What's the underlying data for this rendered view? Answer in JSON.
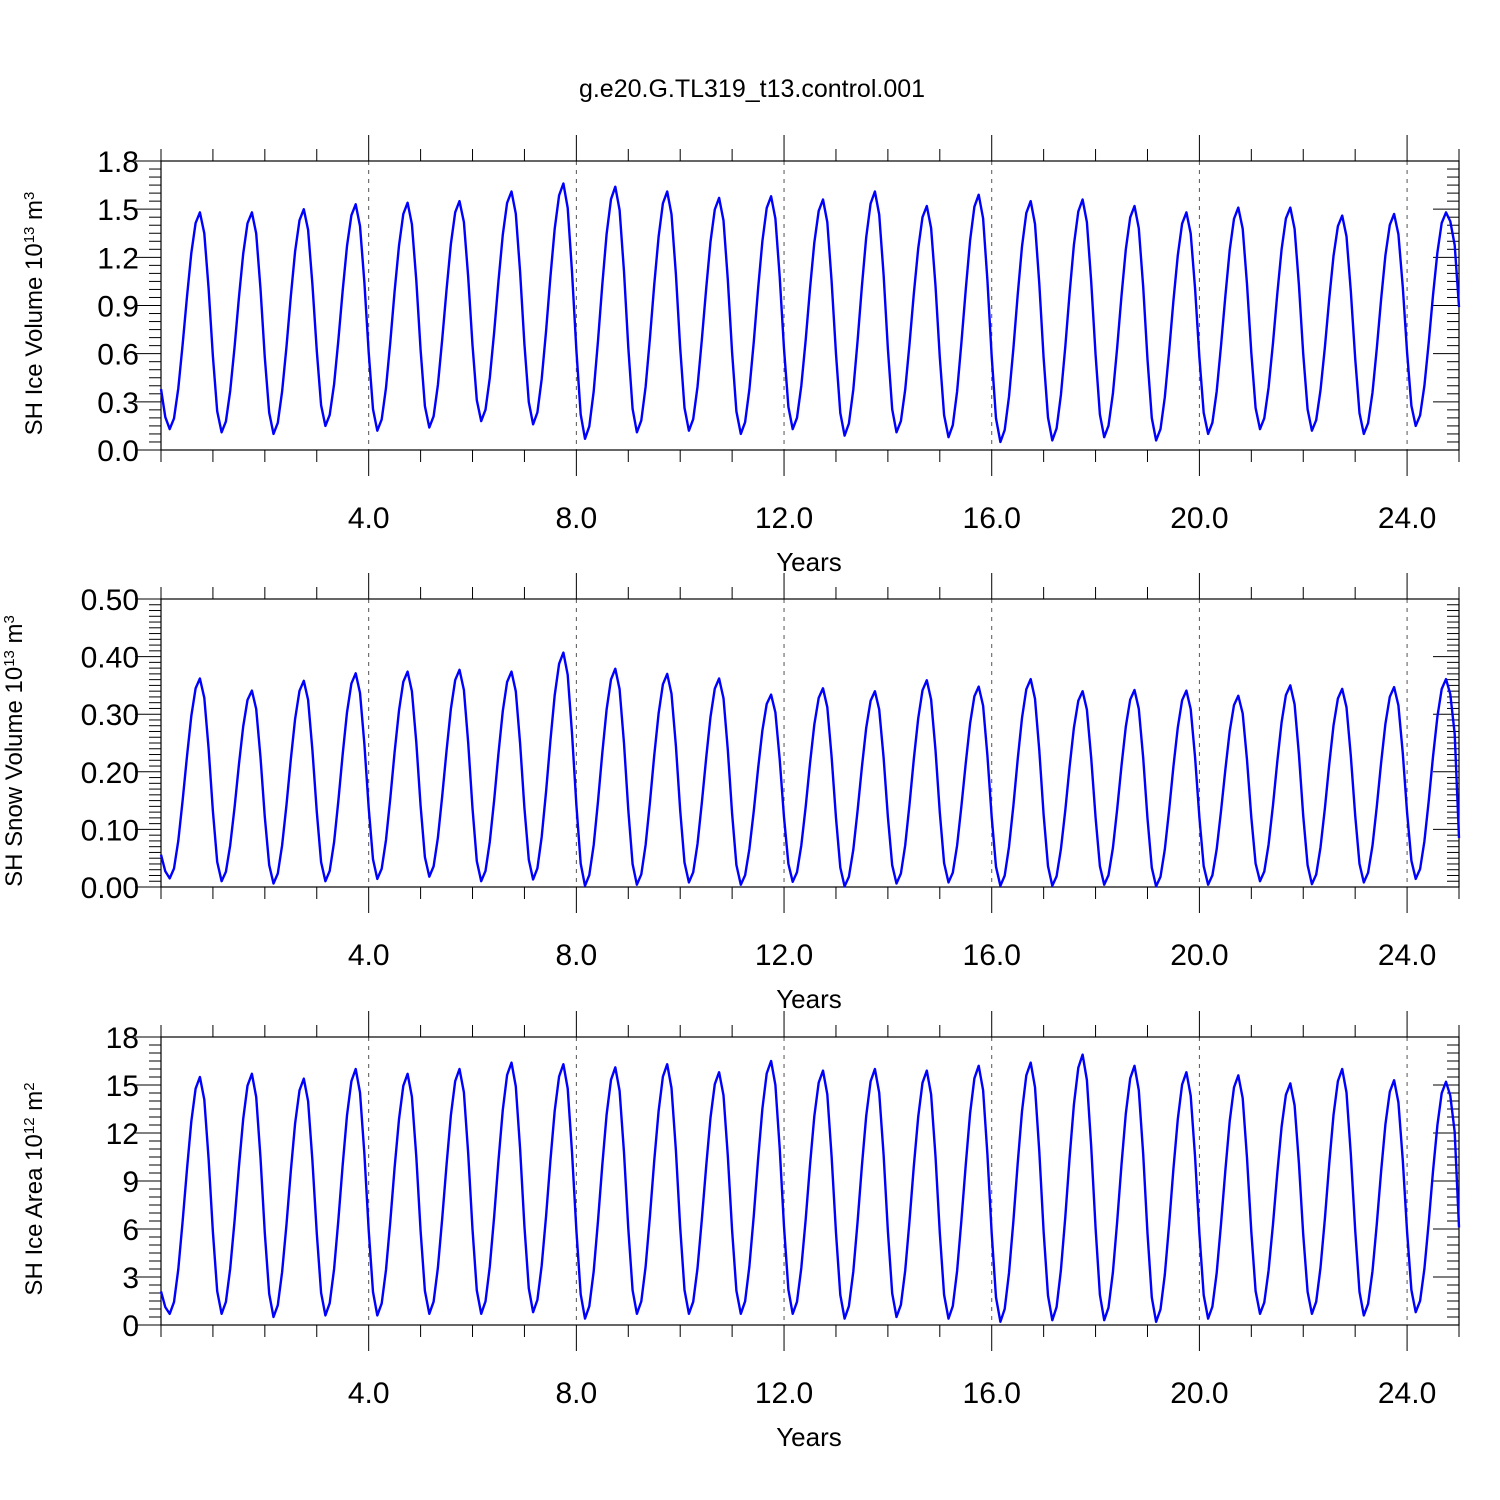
{
  "title": "g.e20.G.TL319_t13.control.001",
  "colors": {
    "series": "#0000ff",
    "axis": "#000000",
    "grid": "#555555"
  },
  "chart_data": [
    {
      "type": "line",
      "xlabel": "Years",
      "ylabel": {
        "prefix": "SH Ice Volume 10",
        "exponent": "13",
        "unit": " m",
        "unit_exponent": "3"
      },
      "xlim": [
        0,
        25
      ],
      "ylim": [
        0,
        1.8
      ],
      "x_ticks": [
        4,
        8,
        12,
        16,
        20,
        24
      ],
      "x_tick_labels": [
        "4.0",
        "8.0",
        "12.0",
        "16.0",
        "20.0",
        "24.0"
      ],
      "y_ticks": [
        0,
        0.3,
        0.6,
        0.9,
        1.2,
        1.5,
        1.8
      ],
      "y_tick_labels": [
        "0.0",
        "0.3",
        "0.6",
        "0.9",
        "1.2",
        "1.5",
        "1.8"
      ],
      "grid": "vertical dashed at labeled years",
      "seasonal_cycle": {
        "months_per_year": 12,
        "peak_month": 9,
        "trough_month": 2
      },
      "yearly_max": [
        1.48,
        1.48,
        1.5,
        1.53,
        1.54,
        1.55,
        1.61,
        1.66,
        1.64,
        1.61,
        1.57,
        1.58,
        1.56,
        1.61,
        1.52,
        1.59,
        1.55,
        1.56,
        1.52,
        1.48,
        1.51,
        1.51,
        1.46,
        1.47,
        1.48
      ],
      "yearly_min": [
        0.13,
        0.11,
        0.1,
        0.15,
        0.12,
        0.14,
        0.18,
        0.16,
        0.07,
        0.11,
        0.12,
        0.1,
        0.13,
        0.09,
        0.11,
        0.08,
        0.05,
        0.06,
        0.08,
        0.06,
        0.1,
        0.13,
        0.12,
        0.1,
        0.15
      ],
      "start_value": 0.38,
      "end_value": 0.89,
      "series": [
        {
          "values": "generated monthly from yearly_max / yearly_min"
        }
      ]
    },
    {
      "type": "line",
      "xlabel": "Years",
      "ylabel": {
        "prefix": "SH Snow Volume 10",
        "exponent": "13",
        "unit": " m",
        "unit_exponent": "3"
      },
      "xlim": [
        0,
        25
      ],
      "ylim": [
        0,
        0.5
      ],
      "x_ticks": [
        4,
        8,
        12,
        16,
        20,
        24
      ],
      "x_tick_labels": [
        "4.0",
        "8.0",
        "12.0",
        "16.0",
        "20.0",
        "24.0"
      ],
      "y_ticks": [
        0,
        0.1,
        0.2,
        0.3,
        0.4,
        0.5
      ],
      "y_tick_labels": [
        "0.00",
        "0.10",
        "0.20",
        "0.30",
        "0.40",
        "0.50"
      ],
      "grid": "vertical dashed at labeled years",
      "seasonal_cycle": {
        "months_per_year": 12,
        "peak_month": 9,
        "trough_month": 2
      },
      "yearly_max": [
        0.362,
        0.341,
        0.358,
        0.371,
        0.374,
        0.377,
        0.374,
        0.407,
        0.379,
        0.37,
        0.362,
        0.334,
        0.345,
        0.34,
        0.359,
        0.348,
        0.361,
        0.34,
        0.342,
        0.341,
        0.332,
        0.35,
        0.344,
        0.347,
        0.361
      ],
      "yearly_min": [
        0.015,
        0.01,
        0.006,
        0.01,
        0.014,
        0.018,
        0.01,
        0.013,
        0.002,
        0.004,
        0.008,
        0.004,
        0.009,
        0.001,
        0.006,
        0.008,
        0.002,
        0.002,
        0.004,
        0.001,
        0.004,
        0.01,
        0.005,
        0.008,
        0.014
      ],
      "start_value": 0.056,
      "end_value": 0.085,
      "series": [
        {
          "values": "generated monthly from yearly_max / yearly_min"
        }
      ]
    },
    {
      "type": "line",
      "xlabel": "Years",
      "ylabel": {
        "prefix": "SH Ice Area 10",
        "exponent": "12",
        "unit": " m",
        "unit_exponent": "2"
      },
      "xlim": [
        0,
        25
      ],
      "ylim": [
        0,
        18
      ],
      "x_ticks": [
        4,
        8,
        12,
        16,
        20,
        24
      ],
      "x_tick_labels": [
        "4.0",
        "8.0",
        "12.0",
        "16.0",
        "20.0",
        "24.0"
      ],
      "y_ticks": [
        0,
        3,
        6,
        9,
        12,
        15,
        18
      ],
      "y_tick_labels": [
        "0",
        "3",
        "6",
        "9",
        "12",
        "15",
        "18"
      ],
      "grid": "vertical dashed at labeled years",
      "seasonal_cycle": {
        "months_per_year": 12,
        "peak_month": 9,
        "trough_month": 2
      },
      "yearly_max": [
        15.5,
        15.7,
        15.4,
        16.0,
        15.7,
        16.0,
        16.4,
        16.3,
        16.1,
        16.3,
        15.8,
        16.5,
        15.9,
        16.0,
        15.9,
        16.2,
        16.4,
        16.9,
        16.2,
        15.8,
        15.6,
        15.1,
        16.0,
        15.3,
        15.2
      ],
      "yearly_min": [
        0.7,
        0.7,
        0.5,
        0.6,
        0.6,
        0.7,
        0.7,
        0.8,
        0.4,
        0.7,
        0.7,
        0.7,
        0.7,
        0.4,
        0.5,
        0.4,
        0.2,
        0.3,
        0.3,
        0.2,
        0.4,
        0.7,
        0.7,
        0.6,
        0.8
      ],
      "start_value": 2.1,
      "end_value": 6.1,
      "series": [
        {
          "values": "generated monthly from yearly_max / yearly_min"
        }
      ]
    }
  ]
}
